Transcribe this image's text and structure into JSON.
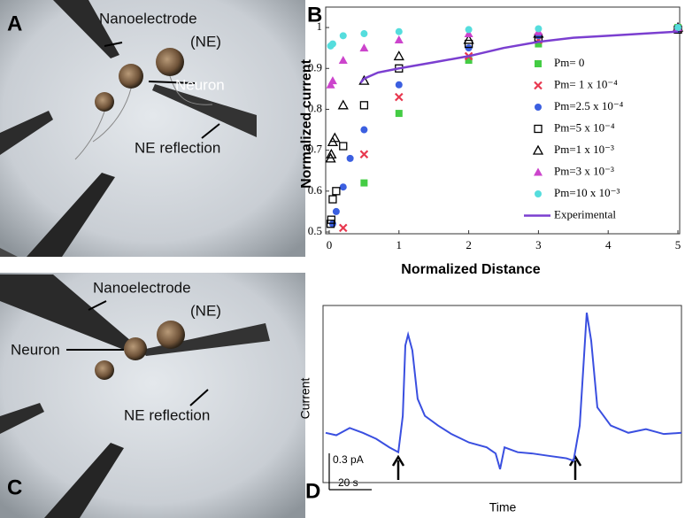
{
  "panel_labels": [
    "A",
    "B",
    "C",
    "D"
  ],
  "images": [
    {
      "labels": [
        "Nanoelectrode",
        "(NE)",
        "Neuron",
        "NE reflection"
      ]
    },
    {
      "labels": [
        "Nanoelectrode",
        "(NE)",
        "Neuron",
        "NE reflection"
      ]
    }
  ],
  "chart_data": [
    {
      "type": "scatter",
      "x_label": "Normalized Distance",
      "y_label": "Normalized current",
      "xlim": [
        0,
        5
      ],
      "ylim": [
        0.5,
        1.05
      ],
      "xticks": [
        0,
        1,
        2,
        3,
        4,
        5
      ],
      "yticks": [
        0.5,
        0.6,
        0.7,
        0.8,
        0.9,
        1
      ],
      "series": [
        {
          "name": "Pm= 0",
          "color": "#44cc44",
          "marker": "square",
          "x": [
            0.5,
            1,
            2,
            3,
            5
          ],
          "values": [
            0.62,
            0.79,
            0.92,
            0.96,
            1.0
          ]
        },
        {
          "name": "Pm= 1 x 10⁻⁴",
          "color": "#e8384f",
          "marker": "x",
          "x": [
            0.2,
            0.5,
            1,
            2,
            3,
            5
          ],
          "values": [
            0.51,
            0.69,
            0.83,
            0.93,
            0.97,
            0.995
          ]
        },
        {
          "name": "Pm=2.5 x 10⁻⁴",
          "color": "#3b5fe0",
          "marker": "circle",
          "x": [
            0.05,
            0.1,
            0.2,
            0.3,
            0.5,
            1,
            2,
            3,
            5
          ],
          "values": [
            0.52,
            0.55,
            0.61,
            0.68,
            0.75,
            0.86,
            0.95,
            0.98,
            0.995
          ]
        },
        {
          "name": "Pm=5 x 10⁻⁴",
          "color": "#000000",
          "marker": "open-square",
          "x": [
            0.02,
            0.03,
            0.05,
            0.1,
            0.2,
            0.5,
            1,
            2,
            3,
            5
          ],
          "values": [
            0.52,
            0.53,
            0.58,
            0.6,
            0.71,
            0.81,
            0.9,
            0.96,
            0.975,
            0.995
          ]
        },
        {
          "name": "Pm=1 x 10⁻³",
          "color": "#000000",
          "marker": "open-triangle",
          "x": [
            0.02,
            0.03,
            0.05,
            0.08,
            0.2,
            0.5,
            1,
            2,
            3,
            5
          ],
          "values": [
            0.68,
            0.69,
            0.72,
            0.73,
            0.81,
            0.87,
            0.93,
            0.97,
            0.985,
            1.0
          ]
        },
        {
          "name": "Pm=3 x 10⁻³",
          "color": "#cc44cc",
          "marker": "triangle",
          "x": [
            0.02,
            0.05,
            0.2,
            0.5,
            1,
            2,
            3,
            5
          ],
          "values": [
            0.86,
            0.87,
            0.92,
            0.95,
            0.97,
            0.985,
            0.99,
            1.0
          ]
        },
        {
          "name": "Pm=10 x 10⁻³",
          "color": "#55dddd",
          "marker": "circle",
          "x": [
            0.02,
            0.05,
            0.2,
            0.5,
            1,
            2,
            3,
            5
          ],
          "values": [
            0.955,
            0.96,
            0.98,
            0.985,
            0.99,
            0.995,
            0.997,
            1.0
          ]
        },
        {
          "name": "Experimental",
          "color": "#7b3fd0",
          "marker": "line",
          "x": [
            0.45,
            0.5,
            0.7,
            1,
            1.5,
            2,
            2.5,
            3,
            3.5,
            4,
            4.5,
            5
          ],
          "values": [
            0.865,
            0.875,
            0.89,
            0.9,
            0.915,
            0.93,
            0.95,
            0.965,
            0.975,
            0.98,
            0.985,
            0.99
          ]
        }
      ]
    },
    {
      "type": "line",
      "x_label": "Time",
      "y_label": "Current",
      "xlim": [
        0,
        167.5
      ],
      "ylim": [
        -0.51,
        1.06
      ],
      "scale_bars": [
        {
          "value": 0.3,
          "label": "0.3 pA"
        },
        {
          "value": 20,
          "label": "20 s"
        }
      ],
      "series": [
        {
          "color": "#3a4fe0",
          "x": [
            0,
            5,
            11.3,
            17.5,
            23.8,
            30,
            34.2,
            36.3,
            37.5,
            38.8,
            40.8,
            43.3,
            46.7,
            52.9,
            59.2,
            67.5,
            75.8,
            80,
            82.1,
            84.2,
            90.4,
            97.1,
            105,
            113.3,
            116.7,
            119.6,
            121.7,
            122.9,
            125,
            127.9,
            134.2,
            142.5,
            150.8,
            159.2,
            167.5
          ],
          "values": [
            0.01,
            -0.01,
            0.05,
            0.01,
            -0.04,
            -0.11,
            -0.15,
            0.15,
            0.73,
            0.82,
            0.69,
            0.29,
            0.15,
            0.07,
            0,
            -0.07,
            -0.11,
            -0.16,
            -0.29,
            -0.11,
            -0.15,
            -0.16,
            -0.18,
            -0.2,
            -0.22,
            0.07,
            0.66,
            1.0,
            0.77,
            0.22,
            0.07,
            0.01,
            0.04,
            0,
            0.01
          ]
        }
      ]
    }
  ]
}
